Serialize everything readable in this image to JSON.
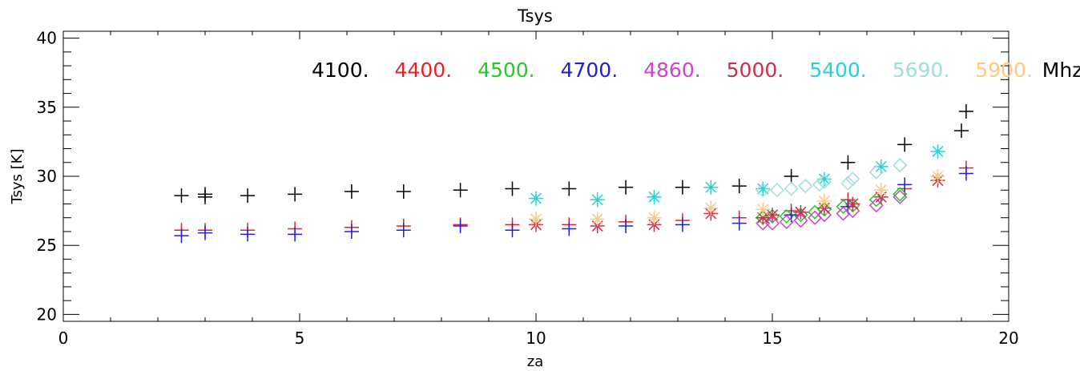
{
  "chart_data": {
    "type": "scatter",
    "title": "Tsys",
    "xlabel": "za",
    "ylabel": "Tsys [K]",
    "xlim": [
      0,
      20
    ],
    "ylim": [
      19.5,
      40.5
    ],
    "x_ticks": [
      "0",
      "5",
      "10",
      "15",
      "20"
    ],
    "y_ticks": [
      "20",
      "25",
      "30",
      "35",
      "40"
    ],
    "legend_unit": "Mhz",
    "grid": false,
    "legend_position": "top-right",
    "series": [
      {
        "name": "4100.",
        "color": "#000000",
        "marker": "plus",
        "points": [
          [
            2.5,
            28.6
          ],
          [
            3.0,
            28.5
          ],
          [
            3.0,
            28.7
          ],
          [
            3.9,
            28.6
          ],
          [
            4.9,
            28.7
          ],
          [
            6.1,
            28.9
          ],
          [
            7.2,
            28.9
          ],
          [
            8.4,
            29.0
          ],
          [
            9.5,
            29.1
          ],
          [
            10.7,
            29.1
          ],
          [
            11.9,
            29.2
          ],
          [
            13.1,
            29.2
          ],
          [
            14.3,
            29.3
          ],
          [
            15.4,
            30.0
          ],
          [
            16.6,
            31.0
          ],
          [
            17.8,
            32.3
          ],
          [
            19.0,
            33.3
          ],
          [
            19.1,
            34.7
          ]
        ]
      },
      {
        "name": "4400.",
        "color": "#e8202a",
        "marker": "plus",
        "points": [
          [
            2.5,
            26.1
          ],
          [
            3.0,
            26.1
          ],
          [
            3.9,
            26.1
          ],
          [
            4.9,
            26.2
          ],
          [
            6.1,
            26.3
          ],
          [
            7.2,
            26.4
          ],
          [
            8.4,
            26.5
          ],
          [
            9.5,
            26.5
          ],
          [
            10.7,
            26.5
          ],
          [
            11.9,
            26.7
          ],
          [
            13.1,
            26.8
          ],
          [
            14.3,
            27.0
          ],
          [
            15.4,
            27.5
          ],
          [
            16.6,
            28.3
          ],
          [
            17.8,
            29.1
          ],
          [
            19.1,
            30.6
          ]
        ]
      },
      {
        "name": "4500.",
        "color": "#22cc22",
        "marker": "diamond",
        "points": [
          [
            14.8,
            27.0
          ],
          [
            15.0,
            27.1
          ],
          [
            15.3,
            27.1
          ],
          [
            15.6,
            27.2
          ],
          [
            15.9,
            27.4
          ],
          [
            16.1,
            27.6
          ],
          [
            16.5,
            27.8
          ],
          [
            16.7,
            27.9
          ],
          [
            17.2,
            28.3
          ],
          [
            17.7,
            28.7
          ]
        ]
      },
      {
        "name": "4700.",
        "color": "#2020d8",
        "marker": "plus",
        "points": [
          [
            2.5,
            25.7
          ],
          [
            3.0,
            25.9
          ],
          [
            3.9,
            25.8
          ],
          [
            4.9,
            25.8
          ],
          [
            6.1,
            26.0
          ],
          [
            7.2,
            26.1
          ],
          [
            8.4,
            26.4
          ],
          [
            9.5,
            26.1
          ],
          [
            10.7,
            26.2
          ],
          [
            11.9,
            26.4
          ],
          [
            13.1,
            26.5
          ],
          [
            14.3,
            26.6
          ],
          [
            15.4,
            27.2
          ],
          [
            16.6,
            27.8
          ],
          [
            17.8,
            29.4
          ],
          [
            19.1,
            30.2
          ]
        ]
      },
      {
        "name": "4860.",
        "color": "#cc44cc",
        "marker": "diamond",
        "points": [
          [
            14.8,
            26.6
          ],
          [
            15.0,
            26.6
          ],
          [
            15.3,
            26.7
          ],
          [
            15.6,
            26.8
          ],
          [
            15.9,
            27.0
          ],
          [
            16.1,
            27.2
          ],
          [
            16.5,
            27.3
          ],
          [
            16.7,
            27.5
          ],
          [
            17.2,
            27.9
          ],
          [
            17.7,
            28.5
          ]
        ]
      },
      {
        "name": "5000.",
        "color": "#c83050",
        "marker": "asterisk",
        "points": [
          [
            10.0,
            26.5
          ],
          [
            11.3,
            26.4
          ],
          [
            12.5,
            26.5
          ],
          [
            13.7,
            27.3
          ],
          [
            14.8,
            27.0
          ],
          [
            15.0,
            27.2
          ],
          [
            15.6,
            27.4
          ],
          [
            16.1,
            27.7
          ],
          [
            16.7,
            28.0
          ],
          [
            17.3,
            28.5
          ],
          [
            18.5,
            29.7
          ]
        ]
      },
      {
        "name": "5400.",
        "color": "#22d4d8",
        "marker": "asterisk",
        "points": [
          [
            10.0,
            28.4
          ],
          [
            11.3,
            28.3
          ],
          [
            12.5,
            28.5
          ],
          [
            13.7,
            29.2
          ],
          [
            14.8,
            29.1
          ],
          [
            16.1,
            29.8
          ],
          [
            17.3,
            30.7
          ],
          [
            18.5,
            31.8
          ]
        ]
      },
      {
        "name": "5690.",
        "color": "#a0dede",
        "marker": "diamond",
        "points": [
          [
            14.8,
            29.0
          ],
          [
            15.1,
            29.0
          ],
          [
            15.4,
            29.1
          ],
          [
            15.7,
            29.3
          ],
          [
            16.0,
            29.4
          ],
          [
            16.1,
            29.6
          ],
          [
            16.6,
            29.5
          ],
          [
            16.7,
            29.8
          ],
          [
            17.2,
            30.3
          ],
          [
            17.7,
            30.8
          ]
        ]
      },
      {
        "name": "5900.",
        "color": "#ffc880",
        "marker": "asterisk",
        "points": [
          [
            10.0,
            26.9
          ],
          [
            11.3,
            26.9
          ],
          [
            12.5,
            27.0
          ],
          [
            13.7,
            27.7
          ],
          [
            14.8,
            27.6
          ],
          [
            16.1,
            28.2
          ],
          [
            17.3,
            29.0
          ],
          [
            18.5,
            30.0
          ]
        ]
      }
    ]
  }
}
